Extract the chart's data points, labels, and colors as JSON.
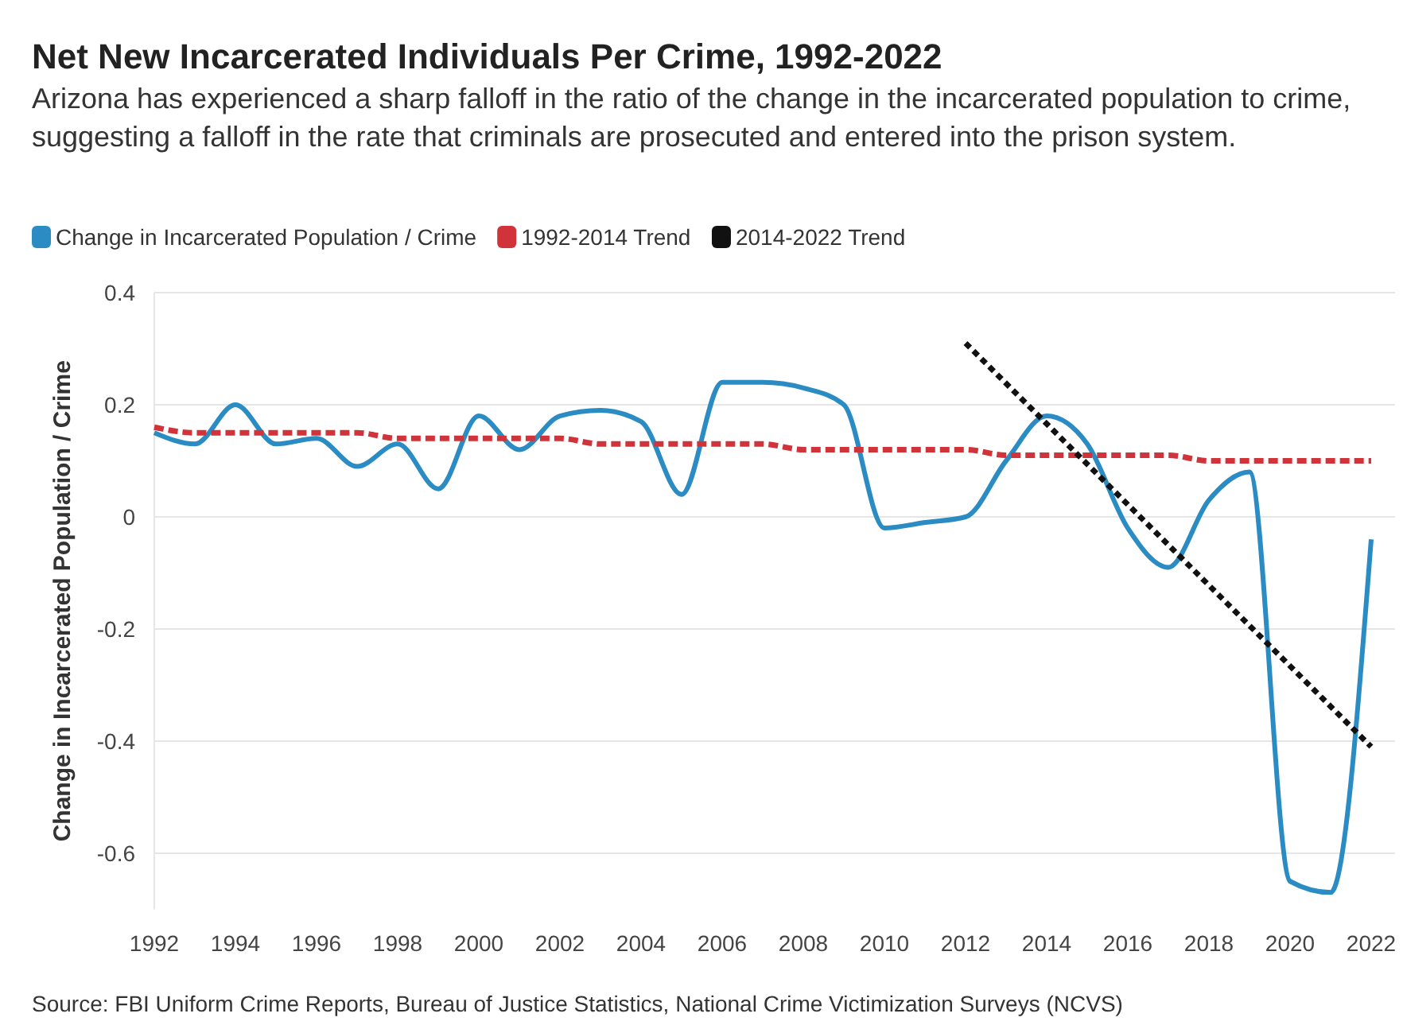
{
  "chart_data": {
    "type": "line",
    "title": "Net New Incarcerated Individuals Per Crime, 1992-2022",
    "subtitle": "Arizona has experienced a sharp falloff in the ratio of the change in the incarcerated population to crime, suggesting a falloff in the rate that criminals are prosecuted and entered into the prison system.",
    "ylabel": "Change in Incarcerated Population / Crime",
    "annotations": [
      "Source: FBI Uniform Crime Reports, Bureau of Justice Statistics, National Crime Victimization Surveys (NCVS)"
    ],
    "x": [
      1992,
      1993,
      1994,
      1995,
      1996,
      1997,
      1998,
      1999,
      2000,
      2001,
      2002,
      2003,
      2004,
      2005,
      2006,
      2007,
      2008,
      2009,
      2010,
      2011,
      2012,
      2013,
      2014,
      2015,
      2016,
      2017,
      2018,
      2019,
      2020,
      2021,
      2022
    ],
    "series": [
      {
        "name": "Change in Incarcerated Population / Crime",
        "color": "#2b8cc4",
        "line_style": "solid",
        "values": [
          0.15,
          0.13,
          0.2,
          0.13,
          0.14,
          0.09,
          0.13,
          0.05,
          0.18,
          0.12,
          0.18,
          0.19,
          0.17,
          0.04,
          0.24,
          0.24,
          0.23,
          0.2,
          -0.02,
          -0.01,
          0.0,
          0.1,
          0.18,
          0.13,
          -0.02,
          -0.09,
          0.03,
          0.08,
          -0.65,
          -0.67,
          -0.04
        ]
      },
      {
        "name": "1992-2014 Trend",
        "color": "#d0343a",
        "line_style": "dashed",
        "values": [
          0.16,
          0.15,
          0.15,
          0.15,
          0.15,
          0.15,
          0.14,
          0.14,
          0.14,
          0.14,
          0.14,
          0.13,
          0.13,
          0.13,
          0.13,
          0.13,
          0.12,
          0.12,
          0.12,
          0.12,
          0.12,
          0.11,
          0.11,
          0.11,
          0.11,
          0.11,
          0.1,
          0.1,
          0.1,
          0.1,
          0.1
        ]
      },
      {
        "name": "2014-2022 Trend",
        "color": "#111111",
        "line_style": "dotted",
        "x": [
          2012,
          2022
        ],
        "values": [
          0.31,
          -0.41
        ]
      }
    ],
    "xlim": [
      1992,
      2022
    ],
    "xticks": [
      1992,
      1994,
      1996,
      1998,
      2000,
      2002,
      2004,
      2006,
      2008,
      2010,
      2012,
      2014,
      2016,
      2018,
      2020,
      2022
    ],
    "ylim": [
      -0.7,
      0.4
    ],
    "yticks": [
      {
        "value": 0.4,
        "label": "0.4"
      },
      {
        "value": 0.2,
        "label": "0.2"
      },
      0,
      {
        "value": -0.2,
        "label": "-0.2"
      },
      {
        "value": -0.4,
        "label": "-0.4"
      },
      {
        "value": -0.6,
        "label": "-0.6"
      }
    ],
    "grid": "y",
    "legend": "top left",
    "marker": "none"
  }
}
